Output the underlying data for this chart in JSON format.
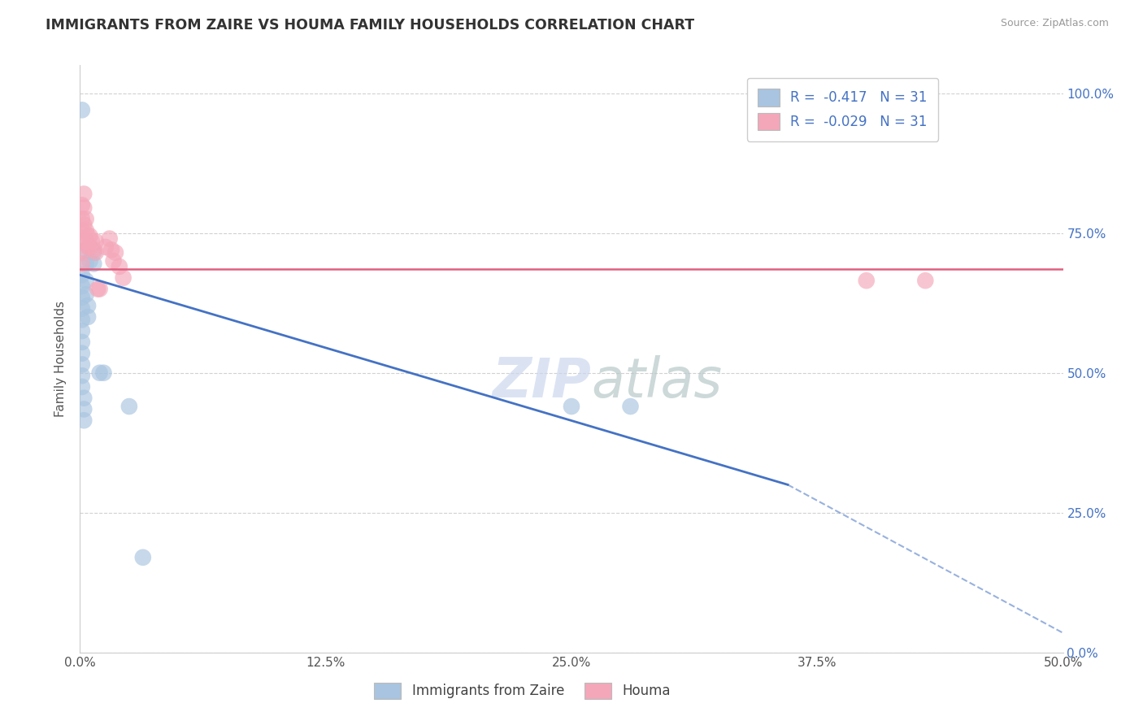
{
  "title": "IMMIGRANTS FROM ZAIRE VS HOUMA FAMILY HOUSEHOLDS CORRELATION CHART",
  "source": "Source: ZipAtlas.com",
  "ylabel": "Family Households",
  "xlim": [
    0.0,
    0.5
  ],
  "ylim": [
    0.0,
    1.05
  ],
  "ytick_values": [
    0.0,
    0.25,
    0.5,
    0.75,
    1.0
  ],
  "xtick_values": [
    0.0,
    0.125,
    0.25,
    0.375,
    0.5
  ],
  "legend_bottom_labels": [
    "Immigrants from Zaire",
    "Houma"
  ],
  "R_zaire": -0.417,
  "N_zaire": 31,
  "R_houma": -0.029,
  "N_houma": 31,
  "color_zaire": "#a8c4e0",
  "color_houma": "#f4a7b9",
  "line_color_zaire": "#4472c4",
  "line_color_houma": "#e06080",
  "background_color": "#ffffff",
  "zaire_line_x0": 0.0,
  "zaire_line_y0": 0.675,
  "zaire_line_x1": 0.36,
  "zaire_line_y1": 0.3,
  "zaire_line_xd0": 0.36,
  "zaire_line_yd0": 0.3,
  "zaire_line_xd1": 0.5,
  "zaire_line_yd1": 0.035,
  "houma_line_y": 0.685,
  "zaire_points": [
    [
      0.001,
      0.97
    ],
    [
      0.001,
      0.675
    ],
    [
      0.001,
      0.655
    ],
    [
      0.001,
      0.635
    ],
    [
      0.001,
      0.615
    ],
    [
      0.001,
      0.595
    ],
    [
      0.001,
      0.575
    ],
    [
      0.001,
      0.555
    ],
    [
      0.001,
      0.535
    ],
    [
      0.001,
      0.515
    ],
    [
      0.001,
      0.495
    ],
    [
      0.001,
      0.475
    ],
    [
      0.002,
      0.455
    ],
    [
      0.002,
      0.435
    ],
    [
      0.002,
      0.415
    ],
    [
      0.003,
      0.72
    ],
    [
      0.003,
      0.695
    ],
    [
      0.003,
      0.665
    ],
    [
      0.003,
      0.64
    ],
    [
      0.004,
      0.62
    ],
    [
      0.004,
      0.6
    ],
    [
      0.005,
      0.725
    ],
    [
      0.005,
      0.7
    ],
    [
      0.007,
      0.715
    ],
    [
      0.007,
      0.695
    ],
    [
      0.01,
      0.5
    ],
    [
      0.012,
      0.5
    ],
    [
      0.025,
      0.44
    ],
    [
      0.032,
      0.17
    ],
    [
      0.25,
      0.44
    ],
    [
      0.28,
      0.44
    ]
  ],
  "houma_points": [
    [
      0.001,
      0.8
    ],
    [
      0.001,
      0.775
    ],
    [
      0.001,
      0.755
    ],
    [
      0.001,
      0.735
    ],
    [
      0.001,
      0.715
    ],
    [
      0.001,
      0.695
    ],
    [
      0.002,
      0.82
    ],
    [
      0.002,
      0.795
    ],
    [
      0.002,
      0.765
    ],
    [
      0.003,
      0.775
    ],
    [
      0.003,
      0.755
    ],
    [
      0.003,
      0.735
    ],
    [
      0.004,
      0.745
    ],
    [
      0.004,
      0.725
    ],
    [
      0.005,
      0.745
    ],
    [
      0.005,
      0.725
    ],
    [
      0.006,
      0.735
    ],
    [
      0.007,
      0.72
    ],
    [
      0.008,
      0.735
    ],
    [
      0.008,
      0.715
    ],
    [
      0.009,
      0.65
    ],
    [
      0.01,
      0.65
    ],
    [
      0.013,
      0.725
    ],
    [
      0.015,
      0.74
    ],
    [
      0.016,
      0.72
    ],
    [
      0.017,
      0.7
    ],
    [
      0.018,
      0.715
    ],
    [
      0.02,
      0.69
    ],
    [
      0.022,
      0.67
    ],
    [
      0.4,
      0.665
    ],
    [
      0.43,
      0.665
    ]
  ]
}
